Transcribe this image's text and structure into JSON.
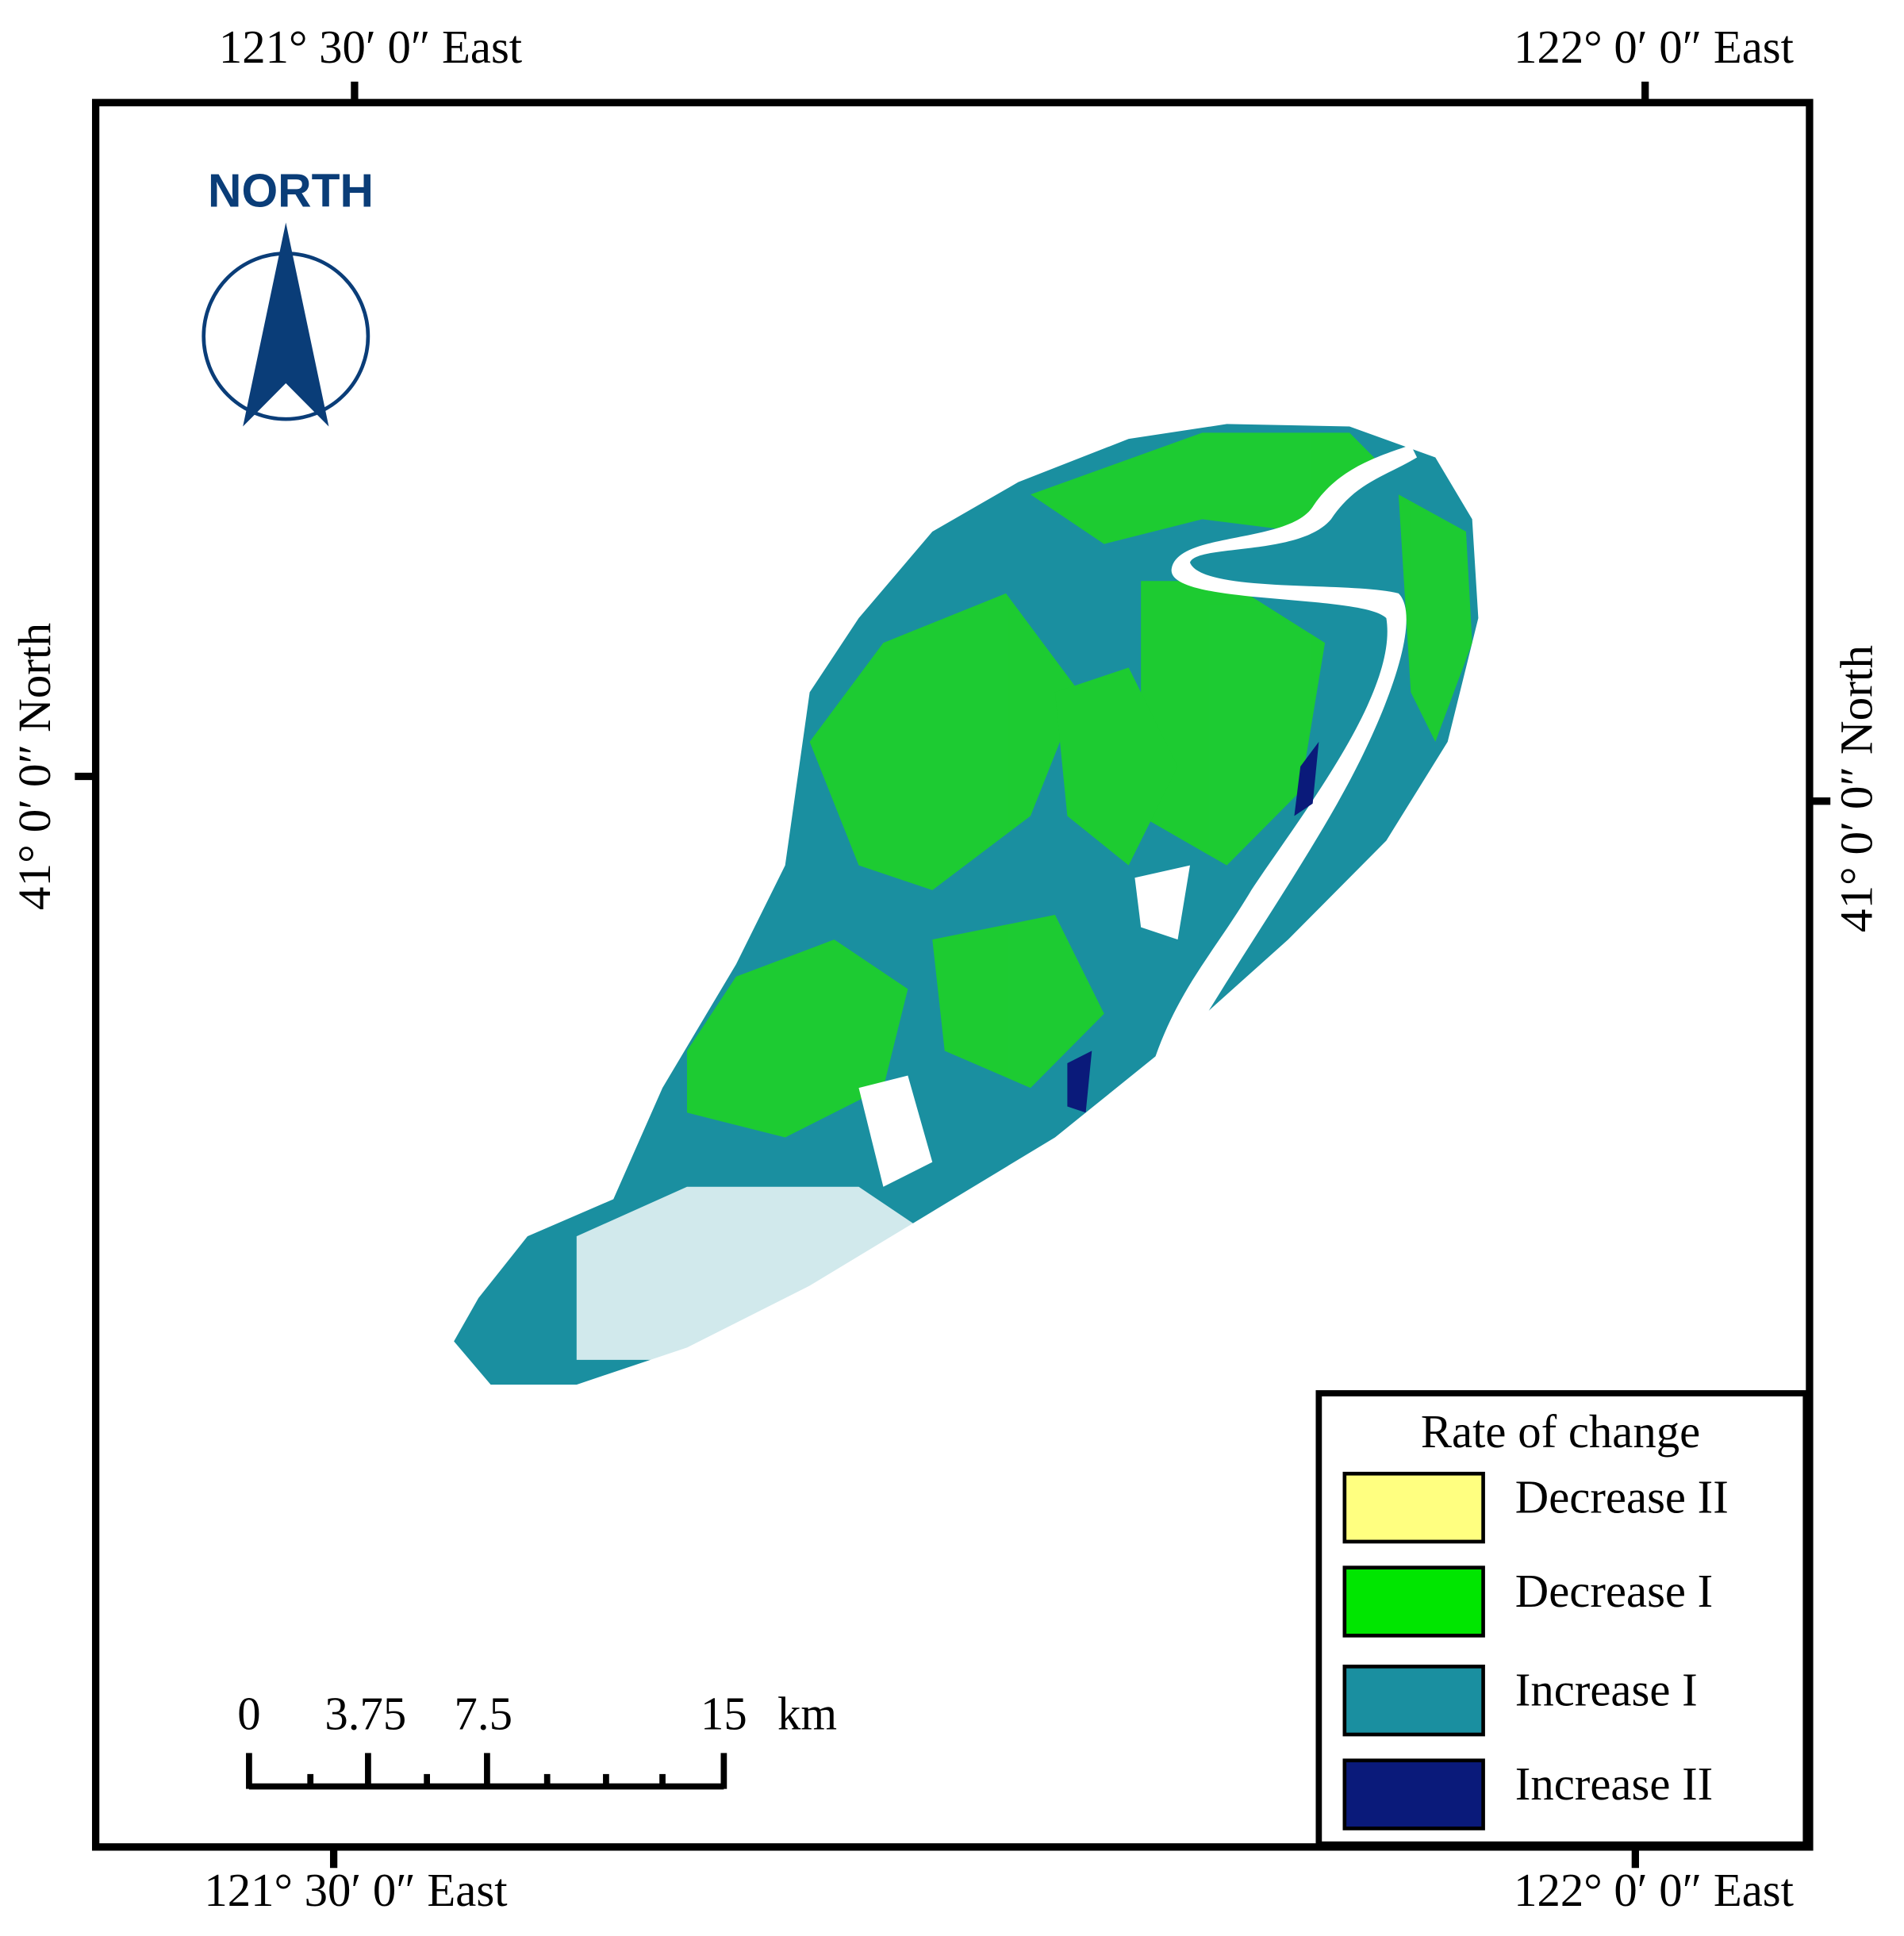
{
  "coordinates": {
    "top": [
      "121° 30′ 0″ East",
      "122° 0′ 0″ East"
    ],
    "bottom": [
      "121° 30′ 0″ East",
      "122° 0′ 0″ East"
    ],
    "left": "41° 0′ 0″ North",
    "right": "41° 0′ 0″ North"
  },
  "north_arrow": {
    "label": "NORTH"
  },
  "scale_bar": {
    "labels": [
      "0",
      "3.75",
      "7.5",
      "15"
    ],
    "unit": "km"
  },
  "legend": {
    "title": "Rate of change",
    "items": [
      {
        "label": "Decrease II",
        "color": "#ffff80"
      },
      {
        "label": "Decrease I",
        "color": "#00e600"
      },
      {
        "label": "Increase I",
        "color": "#1a8fa0"
      },
      {
        "label": "Increase II",
        "color": "#0a1a7a"
      }
    ]
  }
}
